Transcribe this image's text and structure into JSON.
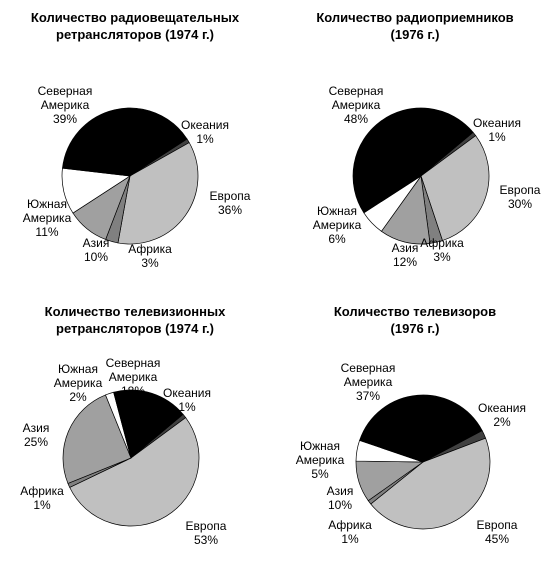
{
  "chart_data": [
    {
      "type": "pie",
      "title": "Количество радиовещательных\nретрансляторов (1974 г.)",
      "categories": [
        "Океания",
        "Европа",
        "Африка",
        "Азия",
        "Южная Америка",
        "Северная Америка"
      ],
      "values": [
        1,
        36,
        3,
        10,
        11,
        39
      ],
      "value_labels": [
        "1%",
        "36%",
        "3%",
        "10%",
        "11%",
        "39%"
      ],
      "colors": [
        "#404040",
        "#c0c0c0",
        "#808080",
        "#a0a0a0",
        "#ffffff",
        "#000000"
      ]
    },
    {
      "type": "pie",
      "title": "Количество радиоприемников\n(1976 г.)",
      "categories": [
        "Океания",
        "Европа",
        "Африка",
        "Азия",
        "Южная Америка",
        "Северная Америка"
      ],
      "values": [
        1,
        30,
        3,
        12,
        6,
        48
      ],
      "value_labels": [
        "1%",
        "30%",
        "3%",
        "12%",
        "6%",
        "48%"
      ],
      "colors": [
        "#404040",
        "#c0c0c0",
        "#808080",
        "#a0a0a0",
        "#ffffff",
        "#000000"
      ]
    },
    {
      "type": "pie",
      "title": "Количество телевизионных\nретрансляторов (1974 г.)",
      "categories": [
        "Океания",
        "Европа",
        "Африка",
        "Азия",
        "Южная Америка",
        "Северная Америка"
      ],
      "values": [
        1,
        53,
        1,
        25,
        2,
        18
      ],
      "value_labels": [
        "1%",
        "53%",
        "1%",
        "25%",
        "2%",
        "18%"
      ],
      "colors": [
        "#404040",
        "#c0c0c0",
        "#808080",
        "#a0a0a0",
        "#ffffff",
        "#000000"
      ]
    },
    {
      "type": "pie",
      "title": "Количество телевизоров\n(1976 г.)",
      "categories": [
        "Океания",
        "Европа",
        "Африка",
        "Азия",
        "Южная Америка",
        "Северная Америка"
      ],
      "values": [
        2,
        45,
        1,
        10,
        5,
        37
      ],
      "value_labels": [
        "2%",
        "45%",
        "1%",
        "10%",
        "5%",
        "37%"
      ],
      "colors": [
        "#404040",
        "#c0c0c0",
        "#808080",
        "#a0a0a0",
        "#ffffff",
        "#000000"
      ]
    }
  ]
}
